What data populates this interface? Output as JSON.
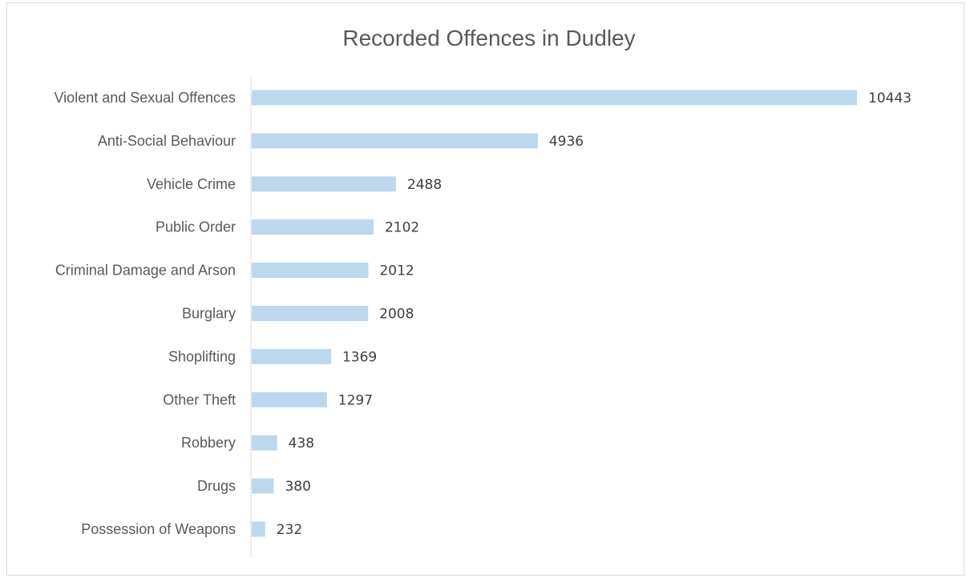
{
  "chart_data": {
    "type": "bar",
    "orientation": "horizontal",
    "title": "Recorded Offences in Dudley",
    "categories": [
      "Violent and Sexual Offences",
      "Anti-Social Behaviour",
      "Vehicle Crime",
      "Public Order",
      "Criminal Damage and Arson",
      "Burglary",
      "Shoplifting",
      "Other Theft",
      "Robbery",
      "Drugs",
      "Possession of Weapons"
    ],
    "values": [
      10443,
      4936,
      2488,
      2102,
      2012,
      2008,
      1369,
      1297,
      438,
      380,
      232
    ],
    "xlim": [
      0,
      10443
    ],
    "grid": false,
    "legend": "none",
    "bar_color": "#bdd7ee"
  }
}
